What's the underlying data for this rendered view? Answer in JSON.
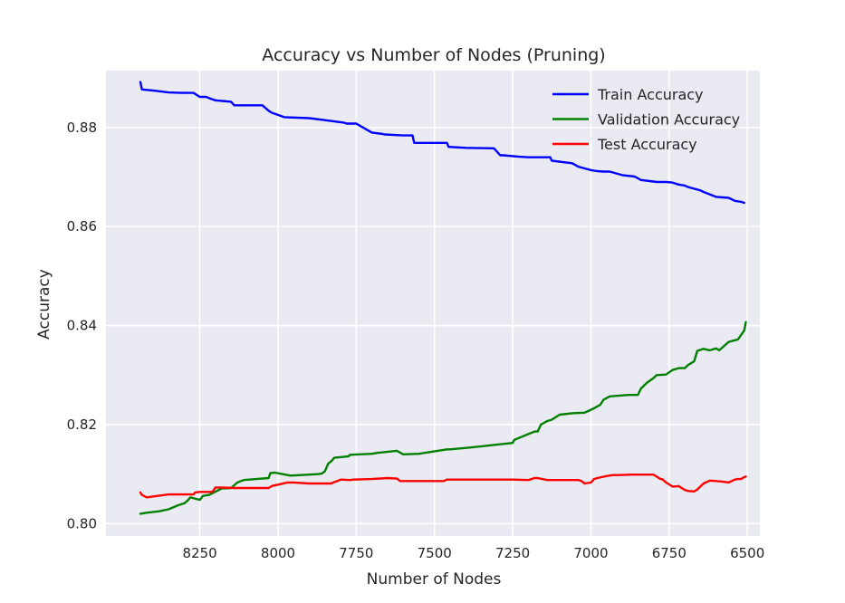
{
  "chart_data": {
    "type": "line",
    "title": "Accuracy vs Number of Nodes (Pruning)",
    "xlabel": "Number of Nodes",
    "ylabel": "Accuracy",
    "xlim": [
      8550,
      6460
    ],
    "ylim": [
      0.7975,
      0.8915
    ],
    "x_inverted": true,
    "xticks": [
      8250,
      8000,
      7750,
      7500,
      7250,
      7000,
      6750,
      6500
    ],
    "yticks": [
      0.8,
      0.82,
      0.84,
      0.86,
      0.88
    ],
    "ytick_labels": [
      "0.80",
      "0.82",
      "0.84",
      "0.86",
      "0.88"
    ],
    "grid": true,
    "legend_position": "top-right",
    "background": "#eaeaf2",
    "series": [
      {
        "name": "Train Accuracy",
        "color": "#0000ff",
        "x": [
          8440,
          8435,
          8400,
          8350,
          8310,
          8300,
          8270,
          8250,
          8230,
          8210,
          8200,
          8150,
          8140,
          8080,
          8050,
          8030,
          8020,
          7980,
          7900,
          7850,
          7790,
          7780,
          7750,
          7745,
          7700,
          7665,
          7660,
          7600,
          7570,
          7565,
          7480,
          7460,
          7455,
          7400,
          7310,
          7290,
          7280,
          7230,
          7200,
          7150,
          7130,
          7125,
          7060,
          7040,
          7000,
          6980,
          6960,
          6940,
          6900,
          6860,
          6840,
          6800,
          6790,
          6770,
          6760,
          6740,
          6720,
          6700,
          6690,
          6650,
          6640,
          6600,
          6580,
          6560,
          6540,
          6520,
          6510
        ],
        "values": [
          0.8892,
          0.8877,
          0.8875,
          0.8871,
          0.887,
          0.887,
          0.887,
          0.8862,
          0.8862,
          0.8857,
          0.8855,
          0.8852,
          0.8845,
          0.8845,
          0.8845,
          0.8834,
          0.883,
          0.8821,
          0.8819,
          0.8815,
          0.881,
          0.8808,
          0.8808,
          0.8806,
          0.879,
          0.8787,
          0.8786,
          0.8784,
          0.8784,
          0.8769,
          0.8769,
          0.8769,
          0.8761,
          0.8759,
          0.8758,
          0.8744,
          0.8744,
          0.8741,
          0.874,
          0.874,
          0.874,
          0.8733,
          0.8728,
          0.8721,
          0.8714,
          0.8712,
          0.8711,
          0.8711,
          0.8704,
          0.8701,
          0.8694,
          0.8691,
          0.869,
          0.869,
          0.869,
          0.8689,
          0.8685,
          0.8683,
          0.868,
          0.8673,
          0.867,
          0.866,
          0.8659,
          0.8658,
          0.8652,
          0.865,
          0.8648
        ]
      },
      {
        "name": "Validation Accuracy",
        "color": "#008000",
        "x": [
          8440,
          8420,
          8380,
          8350,
          8320,
          8300,
          8290,
          8280,
          8250,
          8240,
          8220,
          8180,
          8150,
          8130,
          8110,
          8070,
          8030,
          8025,
          8010,
          7960,
          7900,
          7870,
          7860,
          7850,
          7840,
          7830,
          7820,
          7775,
          7770,
          7700,
          7680,
          7620,
          7600,
          7550,
          7460,
          7450,
          7380,
          7250,
          7245,
          7230,
          7200,
          7180,
          7170,
          7160,
          7140,
          7125,
          7100,
          7060,
          7020,
          7000,
          6990,
          6970,
          6960,
          6940,
          6880,
          6860,
          6850,
          6840,
          6820,
          6800,
          6790,
          6760,
          6740,
          6720,
          6700,
          6690,
          6680,
          6670,
          6660,
          6640,
          6620,
          6600,
          6590,
          6560,
          6530,
          6510,
          6505
        ],
        "values": [
          0.802,
          0.8022,
          0.8025,
          0.8029,
          0.8037,
          0.8041,
          0.8046,
          0.8053,
          0.8048,
          0.8056,
          0.8058,
          0.8071,
          0.8072,
          0.8083,
          0.8088,
          0.809,
          0.8092,
          0.8102,
          0.8103,
          0.8097,
          0.8099,
          0.81,
          0.8101,
          0.8106,
          0.8121,
          0.8126,
          0.8133,
          0.8136,
          0.8139,
          0.8141,
          0.8143,
          0.8147,
          0.814,
          0.8141,
          0.815,
          0.815,
          0.8154,
          0.8163,
          0.8169,
          0.8173,
          0.8181,
          0.8186,
          0.8186,
          0.82,
          0.8207,
          0.821,
          0.822,
          0.8223,
          0.8224,
          0.823,
          0.8233,
          0.824,
          0.825,
          0.8257,
          0.826,
          0.826,
          0.826,
          0.8273,
          0.8285,
          0.8294,
          0.83,
          0.8301,
          0.831,
          0.8314,
          0.8314,
          0.832,
          0.8324,
          0.8328,
          0.8349,
          0.8353,
          0.835,
          0.8354,
          0.835,
          0.8367,
          0.8372,
          0.839,
          0.8407
        ]
      },
      {
        "name": "Test Accuracy",
        "color": "#ff0000",
        "x": [
          8440,
          8435,
          8420,
          8350,
          8290,
          8270,
          8265,
          8250,
          8210,
          8200,
          8180,
          8140,
          8120,
          8030,
          8020,
          7970,
          7950,
          7900,
          7830,
          7820,
          7810,
          7800,
          7770,
          7760,
          7700,
          7650,
          7620,
          7610,
          7590,
          7540,
          7470,
          7460,
          7455,
          7350,
          7250,
          7200,
          7180,
          7170,
          7140,
          7040,
          7030,
          7020,
          7000,
          6990,
          6980,
          6950,
          6930,
          6910,
          6870,
          6840,
          6830,
          6800,
          6790,
          6780,
          6770,
          6760,
          6740,
          6730,
          6720,
          6700,
          6690,
          6670,
          6660,
          6640,
          6620,
          6600,
          6580,
          6560,
          6540,
          6530,
          6520,
          6510,
          6505
        ],
        "values": [
          0.8063,
          0.8058,
          0.8053,
          0.8059,
          0.8059,
          0.8059,
          0.8063,
          0.8064,
          0.8064,
          0.8073,
          0.8073,
          0.8072,
          0.8072,
          0.8072,
          0.8076,
          0.8083,
          0.8083,
          0.8081,
          0.8081,
          0.8084,
          0.8086,
          0.8089,
          0.8088,
          0.8089,
          0.809,
          0.8092,
          0.8091,
          0.8086,
          0.8086,
          0.8086,
          0.8086,
          0.8089,
          0.8089,
          0.8089,
          0.8089,
          0.8088,
          0.8092,
          0.8092,
          0.8088,
          0.8088,
          0.8086,
          0.8081,
          0.8083,
          0.809,
          0.8092,
          0.8096,
          0.8098,
          0.8098,
          0.8099,
          0.8099,
          0.8099,
          0.8099,
          0.8095,
          0.8091,
          0.8089,
          0.8083,
          0.8075,
          0.8075,
          0.8076,
          0.8068,
          0.8066,
          0.8065,
          0.8069,
          0.8081,
          0.8087,
          0.8086,
          0.8085,
          0.8083,
          0.8089,
          0.809,
          0.809,
          0.8094,
          0.8095
        ]
      }
    ]
  }
}
